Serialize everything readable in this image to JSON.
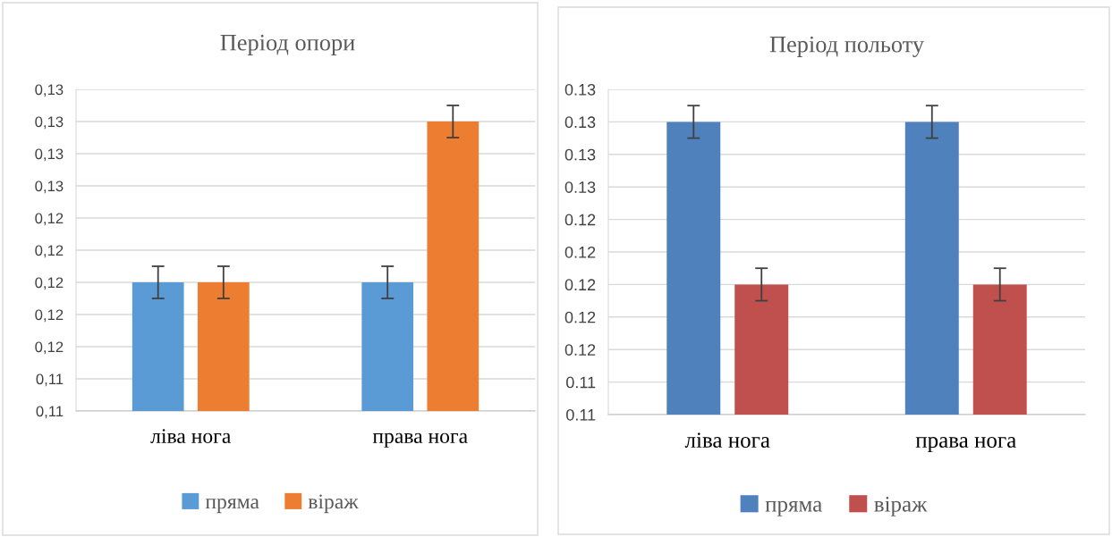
{
  "chart_data": [
    {
      "type": "bar",
      "title": "Період опори",
      "categories": [
        "ліва нога",
        "права нога"
      ],
      "series": [
        {
          "name": "пряма",
          "color": "#5b9bd5",
          "values": [
            0.119,
            0.119
          ],
          "errors": [
            0.001,
            0.001
          ]
        },
        {
          "name": "віраж",
          "color": "#ed7d31",
          "values": [
            0.119,
            0.129
          ],
          "errors": [
            0.001,
            0.001
          ]
        }
      ],
      "ylim": [
        0.111,
        0.131
      ],
      "yticks": [
        {
          "value": 0.111,
          "label": "0,11"
        },
        {
          "value": 0.113,
          "label": "0,11"
        },
        {
          "value": 0.115,
          "label": "0,12"
        },
        {
          "value": 0.117,
          "label": "0,12"
        },
        {
          "value": 0.119,
          "label": "0,12"
        },
        {
          "value": 0.121,
          "label": "0,12"
        },
        {
          "value": 0.123,
          "label": "0,12"
        },
        {
          "value": 0.125,
          "label": "0,13"
        },
        {
          "value": 0.127,
          "label": "0,13"
        },
        {
          "value": 0.129,
          "label": "0,13"
        },
        {
          "value": 0.131,
          "label": "0,13"
        }
      ],
      "grid": "y",
      "legend": "bottom"
    },
    {
      "type": "bar",
      "title": "Період польоту",
      "categories": [
        "ліва нога",
        "права нога"
      ],
      "series": [
        {
          "name": "пряма",
          "color": "#4f81bd",
          "values": [
            0.129,
            0.129
          ],
          "errors": [
            0.001,
            0.001
          ]
        },
        {
          "name": "віраж",
          "color": "#c0504d",
          "values": [
            0.119,
            0.119
          ],
          "errors": [
            0.001,
            0.001
          ]
        }
      ],
      "ylim": [
        0.111,
        0.131
      ],
      "yticks": [
        {
          "value": 0.111,
          "label": "0.11"
        },
        {
          "value": 0.113,
          "label": "0.11"
        },
        {
          "value": 0.115,
          "label": "0.12"
        },
        {
          "value": 0.117,
          "label": "0.12"
        },
        {
          "value": 0.119,
          "label": "0.12"
        },
        {
          "value": 0.121,
          "label": "0.12"
        },
        {
          "value": 0.123,
          "label": "0.12"
        },
        {
          "value": 0.125,
          "label": "0.13"
        },
        {
          "value": 0.127,
          "label": "0.13"
        },
        {
          "value": 0.129,
          "label": "0.13"
        },
        {
          "value": 0.131,
          "label": "0.13"
        }
      ],
      "grid": "y",
      "legend": "bottom"
    }
  ]
}
